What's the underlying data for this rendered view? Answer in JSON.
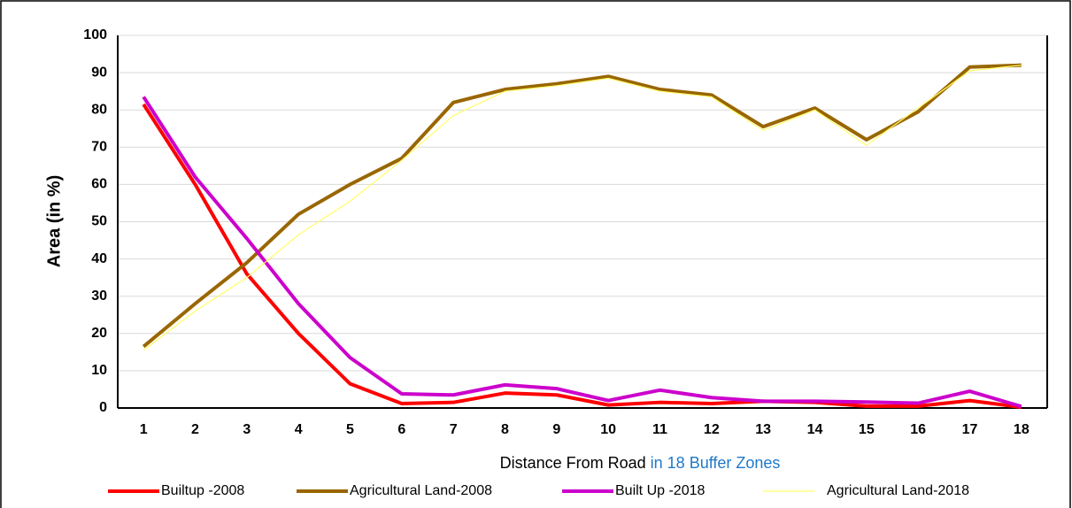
{
  "chart_data": {
    "type": "line",
    "y_label": "Area (in %)",
    "x_label": [
      "Distance From Road",
      "in 18 Buffer Zones"
    ],
    "categories": [
      1,
      2,
      3,
      4,
      5,
      6,
      7,
      8,
      9,
      10,
      11,
      12,
      13,
      14,
      15,
      16,
      17,
      18
    ],
    "series": [
      {
        "name": "Builtup -2008",
        "color": "#ff0000",
        "width": 4,
        "values": [
          81.5,
          60,
          36,
          20,
          6.5,
          1.2,
          1.5,
          4,
          3.5,
          0.8,
          1.5,
          1.2,
          1.8,
          1.5,
          0.5,
          0.5,
          2,
          0.2
        ]
      },
      {
        "name": "Agricultural Land-2008",
        "color": "#996600",
        "width": 4,
        "values": [
          16.5,
          28,
          39,
          52,
          60,
          67,
          82,
          85.5,
          87,
          89,
          85.5,
          84,
          75.5,
          80.5,
          72,
          79.5,
          91.5,
          92
        ]
      },
      {
        "name": "Built Up -2018",
        "color": "#cc00cc",
        "width": 4,
        "values": [
          83.5,
          62,
          45.5,
          28,
          13.5,
          3.8,
          3.5,
          6.2,
          5.2,
          2,
          4.8,
          2.8,
          1.8,
          1.8,
          1.6,
          1.3,
          4.5,
          0.4
        ]
      },
      {
        "name": "Agricultural Land-2018",
        "color": "#ffff66",
        "width": 1.2,
        "values": [
          15.5,
          26,
          35,
          46.5,
          55.5,
          66.5,
          78.5,
          85,
          86.5,
          88.5,
          85,
          83.5,
          74.5,
          80,
          70.5,
          80.5,
          90.5,
          92
        ]
      }
    ],
    "ylim": [
      0,
      100
    ],
    "yticks": [
      0,
      10,
      20,
      30,
      40,
      50,
      60,
      70,
      80,
      90,
      100
    ],
    "grid": true,
    "legend": "bottom"
  }
}
